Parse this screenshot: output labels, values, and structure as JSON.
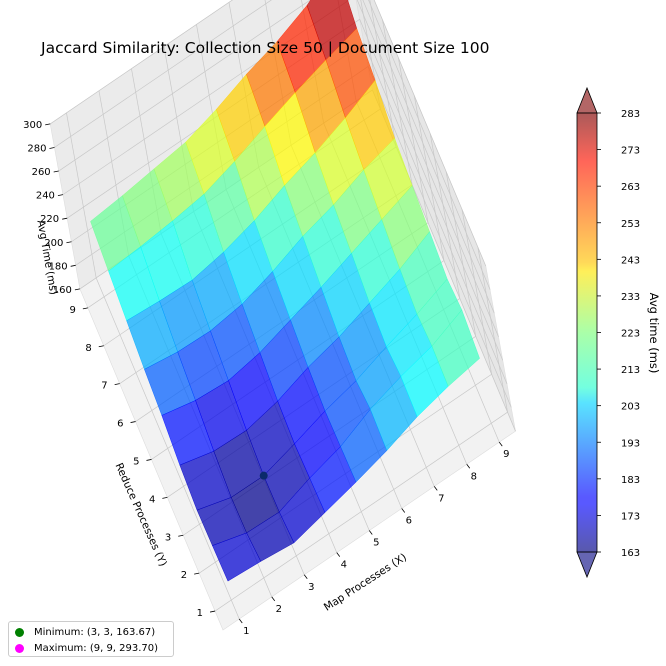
{
  "chart_data": {
    "type": "surface3d",
    "title": "Jaccard Similarity: Collection Size 50 | Document Size 100",
    "xlabel": "Map Processes (X)",
    "ylabel": "Reduce Processes (Y)",
    "zlabel": "Avg Time (ms)",
    "x": [
      1,
      2,
      3,
      4,
      5,
      6,
      7,
      8,
      9
    ],
    "y": [
      1,
      2,
      3,
      4,
      5,
      6,
      7,
      8,
      9
    ],
    "zlim": [
      160,
      300
    ],
    "z_ticks": [
      160,
      180,
      200,
      220,
      240,
      260,
      280,
      300
    ],
    "z": [
      [
        176,
        174,
        171,
        178,
        185,
        193,
        203,
        210,
        215
      ],
      [
        174,
        166,
        165,
        175,
        183,
        196,
        205,
        212,
        224
      ],
      [
        172,
        164,
        163.67,
        172,
        181,
        188,
        198,
        207,
        218
      ],
      [
        178,
        171,
        170,
        176,
        186,
        193,
        203,
        213,
        226
      ],
      [
        188,
        182,
        180,
        185,
        194,
        203,
        213,
        223,
        233
      ],
      [
        195,
        191,
        190,
        194,
        203,
        214,
        222,
        233,
        241
      ],
      [
        204,
        202,
        201,
        206,
        214,
        225,
        234,
        245,
        258
      ],
      [
        214,
        216,
        219,
        223,
        232,
        243,
        253,
        262,
        270
      ],
      [
        224,
        227,
        231,
        235,
        244,
        255,
        264,
        276,
        293.7
      ]
    ],
    "colormap": "jet",
    "colorbar": {
      "label": "Avg time (ms)",
      "ticks": [
        163,
        173,
        183,
        193,
        203,
        213,
        223,
        233,
        243,
        253,
        263,
        273,
        283
      ],
      "range": [
        163,
        283
      ]
    },
    "markers": [
      {
        "label": "Minimum: (3, 3, 163.67)",
        "x": 3,
        "y": 3,
        "z": 163.67,
        "color": "#008000"
      },
      {
        "label": "Maximum: (9, 9, 293.70)",
        "x": 9,
        "y": 9,
        "z": 293.7,
        "color": "#ff00ff"
      }
    ],
    "grid": true,
    "legend_position": "lower-left"
  }
}
